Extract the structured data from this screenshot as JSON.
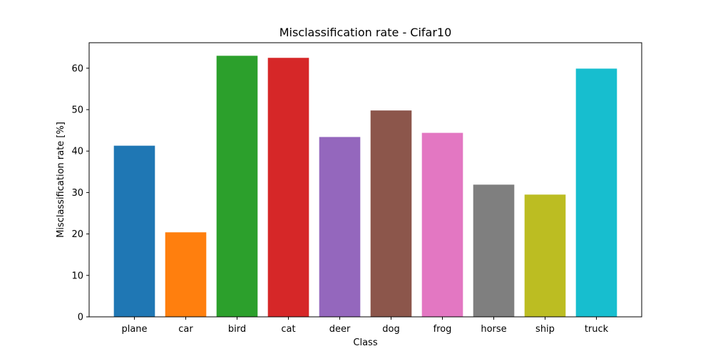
{
  "chart_data": {
    "type": "bar",
    "title": "Misclassification rate - Cifar10",
    "xlabel": "Class",
    "ylabel": "Misclassification rate [%]",
    "categories": [
      "plane",
      "car",
      "bird",
      "cat",
      "deer",
      "dog",
      "frog",
      "horse",
      "ship",
      "truck"
    ],
    "values": [
      41.3,
      20.4,
      63.0,
      62.5,
      43.4,
      49.8,
      44.4,
      31.9,
      29.5,
      59.9
    ],
    "colors": [
      "#1f77b4",
      "#ff7f0e",
      "#2ca02c",
      "#d62728",
      "#9467bd",
      "#8c564b",
      "#e377c2",
      "#7f7f7f",
      "#bcbd22",
      "#17becf"
    ],
    "ylim": [
      0,
      66.15
    ],
    "yticks": [
      0,
      10,
      20,
      30,
      40,
      50,
      60
    ],
    "grid": false,
    "legend": false
  }
}
